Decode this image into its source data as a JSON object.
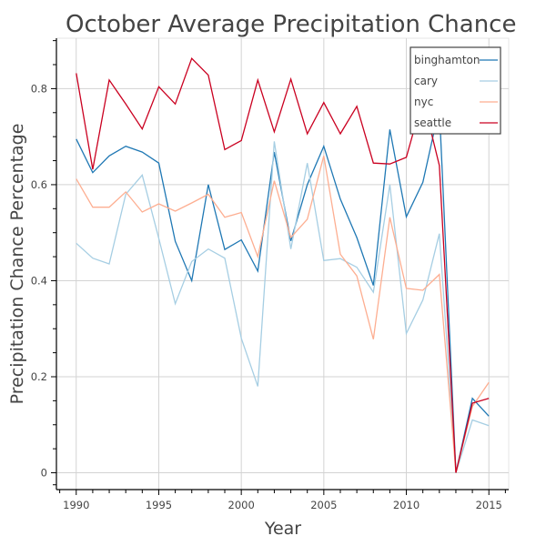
{
  "chart_data": {
    "type": "line",
    "title": "October Average Precipitation Chance",
    "xlabel": "Year",
    "ylabel": "Precipitation Chance Percentage",
    "xlim": [
      1988.8,
      2016.2
    ],
    "ylim": [
      -0.035,
      0.905
    ],
    "x_ticks": [
      1990,
      1995,
      2000,
      2005,
      2010,
      2015
    ],
    "x_tick_labels": [
      "1990",
      "1995",
      "2000",
      "2005",
      "2010",
      "2015"
    ],
    "y_ticks": [
      0,
      0.2,
      0.4,
      0.6,
      0.8
    ],
    "y_tick_labels": [
      "0",
      "0.2",
      "0.4",
      "0.6",
      "0.8"
    ],
    "grid": true,
    "legend_position": "top-right",
    "x": [
      1990,
      1991,
      1992,
      1993,
      1994,
      1995,
      1996,
      1997,
      1998,
      1999,
      2000,
      2001,
      2002,
      2003,
      2004,
      2005,
      2006,
      2007,
      2008,
      2009,
      2010,
      2011,
      2012,
      2013,
      2014,
      2015
    ],
    "series": [
      {
        "name": "binghamton",
        "color": "#1f78b4",
        "values": [
          0.695,
          0.625,
          0.66,
          0.68,
          0.668,
          0.645,
          0.482,
          0.4,
          0.6,
          0.465,
          0.485,
          0.42,
          0.668,
          0.483,
          0.6,
          0.68,
          0.57,
          0.49,
          0.39,
          0.715,
          0.533,
          0.605,
          0.76,
          0.0,
          0.155,
          0.118
        ]
      },
      {
        "name": "cary",
        "color": "#a6cee3",
        "values": [
          0.478,
          0.447,
          0.435,
          0.58,
          0.62,
          0.488,
          0.352,
          0.44,
          0.466,
          0.447,
          0.28,
          0.18,
          0.69,
          0.466,
          0.645,
          0.442,
          0.446,
          0.428,
          0.376,
          0.6,
          0.29,
          0.36,
          0.498,
          0.0,
          0.11,
          0.098
        ]
      },
      {
        "name": "nyc",
        "color": "#fdae91",
        "values": [
          0.612,
          0.553,
          0.553,
          0.585,
          0.543,
          0.56,
          0.545,
          0.562,
          0.58,
          0.532,
          0.542,
          0.45,
          0.608,
          0.49,
          0.528,
          0.66,
          0.455,
          0.41,
          0.278,
          0.532,
          0.384,
          0.38,
          0.413,
          0.0,
          0.138,
          0.188
        ]
      },
      {
        "name": "seattle",
        "color": "#ca0020",
        "values": [
          0.832,
          0.632,
          0.818,
          0.768,
          0.716,
          0.804,
          0.768,
          0.863,
          0.828,
          0.673,
          0.692,
          0.818,
          0.71,
          0.82,
          0.706,
          0.771,
          0.706,
          0.763,
          0.645,
          0.643,
          0.657,
          0.78,
          0.64,
          0.0,
          0.145,
          0.155
        ]
      }
    ]
  }
}
